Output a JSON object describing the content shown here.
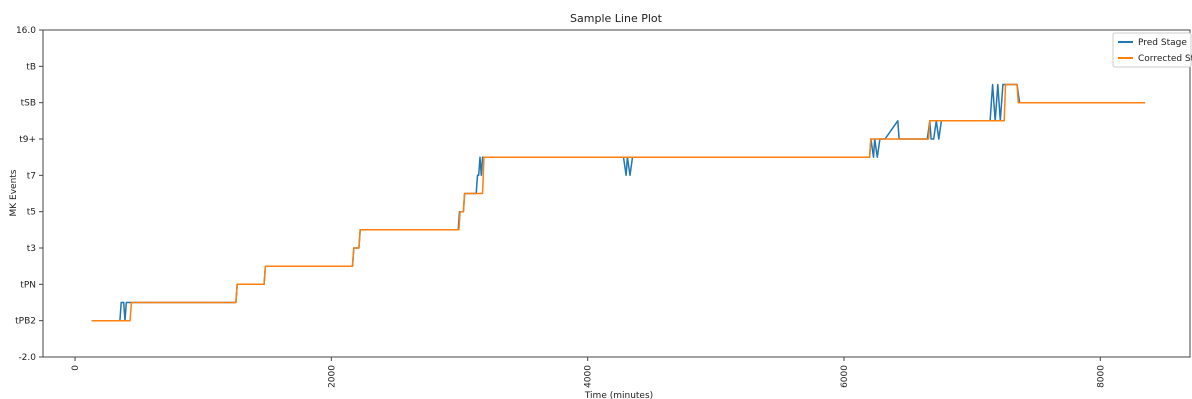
{
  "chart_data": {
    "type": "line",
    "title": "Sample Line Plot",
    "xlabel": "Time (minutes)",
    "ylabel": "MK Events",
    "xlim": [
      -250,
      8700
    ],
    "ylim": [
      -2.0,
      16.0
    ],
    "xticks": [
      0,
      2000,
      4000,
      6000,
      8000
    ],
    "xtick_labels": [
      "0",
      "2000",
      "4000",
      "6000",
      "8000"
    ],
    "yticks": [
      -2,
      0,
      2,
      4,
      6,
      8,
      10,
      12,
      14,
      16
    ],
    "ytick_labels": [
      "-2.0",
      "tPB2",
      "tPN",
      "t3",
      "t5",
      "t7",
      "t9+",
      "tSB",
      "tB",
      "16.0"
    ],
    "grid": false,
    "legend_position": "top-right",
    "series": [
      {
        "name": "Pred Stage",
        "color": "#1f77b4",
        "x": [
          130,
          350,
          360,
          380,
          390,
          400,
          1255,
          1265,
          1475,
          1485,
          2165,
          2175,
          2215,
          2225,
          2990,
          3000,
          3030,
          3040,
          3130,
          3140,
          3150,
          3160,
          3170,
          3180,
          4280,
          4300,
          4310,
          4330,
          4350,
          4370,
          6200,
          6210,
          6230,
          6240,
          6260,
          6280,
          6300,
          6320,
          6420,
          6430,
          6450,
          6650,
          6670,
          6680,
          6700,
          6720,
          6740,
          6760,
          7140,
          7160,
          7180,
          7200,
          7220,
          7240,
          7260,
          7280,
          7350,
          7370,
          8350
        ],
        "y": [
          0,
          0,
          1,
          1,
          0,
          1,
          1,
          2,
          2,
          3,
          3,
          4,
          4,
          5,
          5,
          6,
          6,
          7,
          7,
          8,
          8,
          9,
          8,
          9,
          9,
          8,
          9,
          8,
          9,
          9,
          9,
          10,
          9,
          10,
          9,
          10,
          10,
          10,
          11,
          10,
          10,
          10,
          11,
          10,
          10,
          11,
          10,
          11,
          11,
          13,
          11,
          13,
          11,
          13,
          13,
          13,
          13,
          12,
          12
        ]
      },
      {
        "name": "Corrected Stage",
        "color": "#ff7f0e",
        "x": [
          130,
          430,
          440,
          1255,
          1265,
          1475,
          1485,
          2165,
          2175,
          2215,
          2225,
          2995,
          3005,
          3030,
          3040,
          3180,
          3190,
          6200,
          6210,
          6660,
          6670,
          7250,
          7260,
          7350,
          7360,
          8350
        ],
        "y": [
          0,
          0,
          1,
          1,
          2,
          2,
          3,
          3,
          4,
          4,
          5,
          5,
          6,
          6,
          7,
          7,
          9,
          9,
          10,
          10,
          11,
          11,
          13,
          13,
          12,
          12
        ]
      }
    ]
  }
}
